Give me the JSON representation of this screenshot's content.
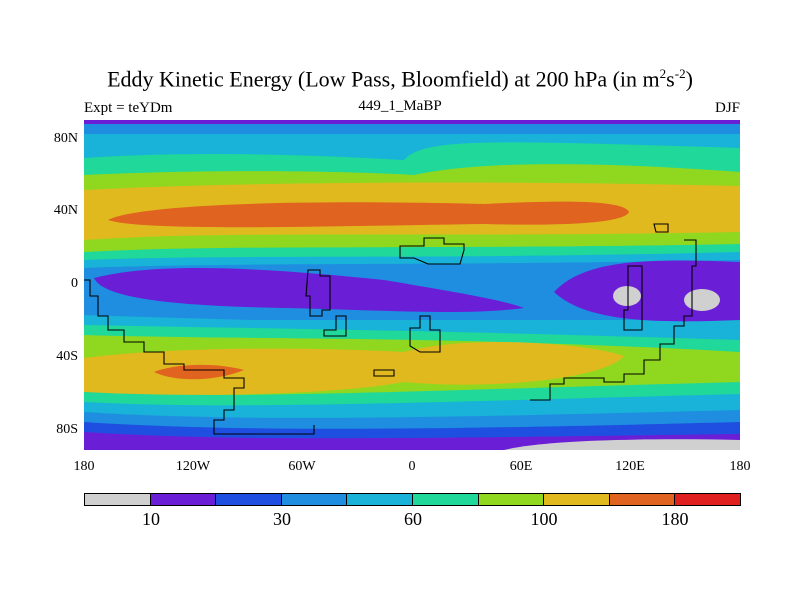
{
  "title": "Eddy Kinetic Energy (Low Pass, Bloomfield) at 200 hPa (in m",
  "title_sup1": "2",
  "title_s": "s",
  "title_sup2": "-2",
  "title_end": ")",
  "subtitle_left": "Expt = teYDm",
  "subtitle_center": "449_1_MaBP",
  "subtitle_right": "DJF",
  "y_ticks": [
    "80N",
    "40N",
    "0",
    "40S",
    "80S"
  ],
  "x_ticks": [
    "180",
    "120W",
    "60W",
    "0",
    "60E",
    "120E",
    "180"
  ],
  "colorbar": {
    "colors": [
      "#d0d0d0",
      "#6a1fd6",
      "#1f4fe0",
      "#1f8ee0",
      "#19b2d8",
      "#1fd89a",
      "#8fd81f",
      "#e0b91f",
      "#e0631f",
      "#e01f1f"
    ],
    "labels": [
      "10",
      "30",
      "60",
      "100",
      "180"
    ]
  },
  "chart_data": {
    "type": "filled-contour-map",
    "variable": "Eddy Kinetic Energy (Low Pass, Bloomfield)",
    "level": "200 hPa",
    "units": "m2 s-2",
    "season": "DJF",
    "experiment": "teYDm",
    "run": "449_1_MaBP",
    "contour_levels": [
      10,
      20,
      30,
      45,
      60,
      80,
      100,
      140,
      180
    ],
    "xlim": [
      -180,
      180
    ],
    "ylim": [
      -90,
      90
    ],
    "features": [
      {
        "region": "northern storm track ~40N",
        "value_range": "140-180"
      },
      {
        "region": "southern storm track ~45S",
        "value_range": "100-180"
      },
      {
        "region": "equatorial belt",
        "value_range": "10-30"
      },
      {
        "region": "western Pacific / maritime continent",
        "value_range": "<10"
      },
      {
        "region": "south pole",
        "value_range": "<10"
      }
    ]
  }
}
